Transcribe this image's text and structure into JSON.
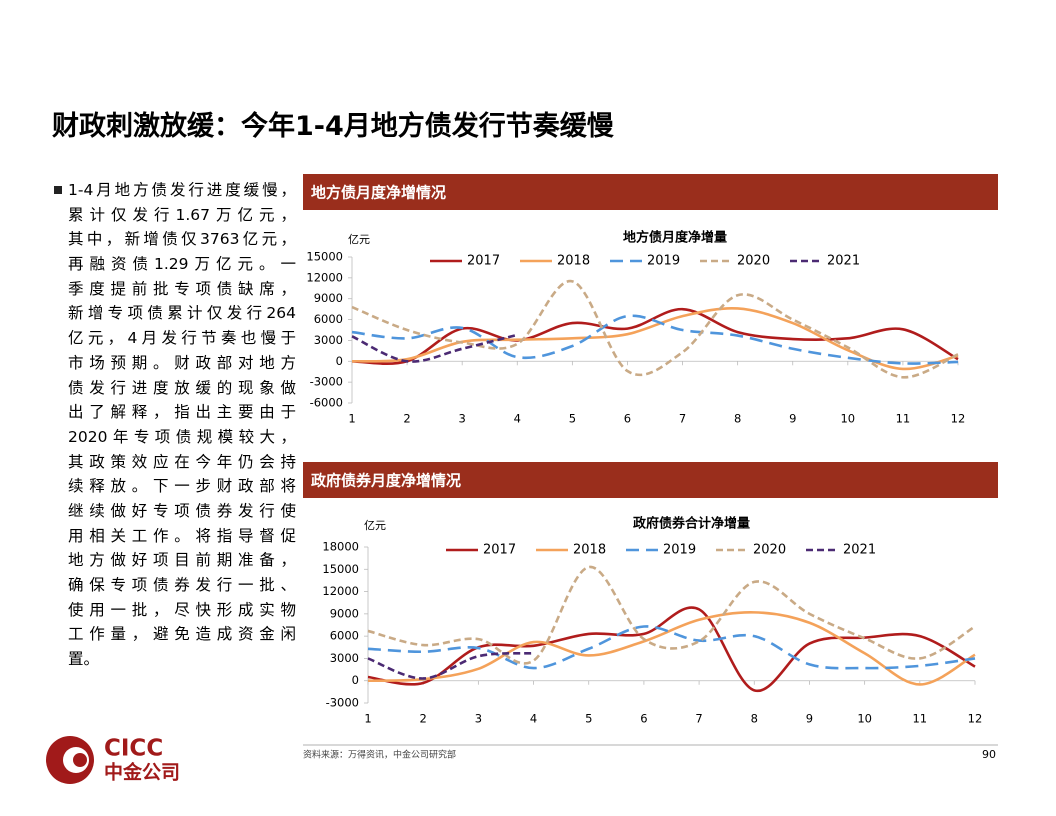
{
  "title": "财政刺激放缓：今年1-4月地方债发行节奏缓慢",
  "bullet_lines": [
    "1-4月地方债发行进度缓慢，",
    "累计仅发行1.67万亿元，",
    "其中，新增债仅3763亿元，",
    "再融资债1.29万亿元。一",
    "季度提前批专项债缺席，",
    "新增专项债累计仅发行264",
    "亿元，4月发行节奏也慢于",
    "市场预期。财政部对地方",
    "债发行进度放缓的现象做",
    "出了解释，指出主要由于",
    "2020年专项债规模较大，",
    "其政策效应在今年仍会持",
    "续释放。下一步财政部将",
    "继续做好专项债券发行使",
    "用相关工作。将指导督促",
    "地方做好项目前期准备，",
    "确保专项债券发行一批、",
    "使用一批，尽快形成实物",
    "工作量，避免造成资金闲",
    "置。"
  ],
  "source": "资料来源：万得资讯，中金公司研究部",
  "page_number": "90",
  "logo": {
    "name": "CICC",
    "name_cn": "中金公司"
  },
  "chart_data": [
    {
      "type": "line",
      "header": "地方债月度净增情况",
      "title": "地方债月度净增量",
      "y_label": "亿元",
      "x": [
        1,
        2,
        3,
        4,
        5,
        6,
        7,
        8,
        9,
        10,
        11,
        12
      ],
      "xlim": [
        1,
        12
      ],
      "xticks": [
        1,
        2,
        3,
        4,
        5,
        6,
        7,
        8,
        9,
        10,
        11,
        12
      ],
      "ylim": [
        -6000,
        15000
      ],
      "yticks": [
        -6000,
        -3000,
        0,
        3000,
        6000,
        9000,
        12000,
        15000
      ],
      "series": [
        {
          "name": "2017",
          "color": "#b01c1c",
          "dash": "solid",
          "values": [
            0,
            0,
            4700,
            3000,
            5500,
            4700,
            7500,
            4200,
            3200,
            3300,
            4600,
            300
          ]
        },
        {
          "name": "2018",
          "color": "#f4a25a",
          "dash": "solid",
          "values": [
            0,
            300,
            2800,
            3100,
            3300,
            3900,
            6500,
            7600,
            5500,
            1600,
            -1100,
            800
          ]
        },
        {
          "name": "2019",
          "color": "#4f95dc",
          "dash": "long-dash",
          "values": [
            4200,
            3300,
            4800,
            600,
            2200,
            6500,
            4500,
            3700,
            1800,
            500,
            -300,
            -100
          ]
        },
        {
          "name": "2020",
          "color": "#c9aa86",
          "dash": "dash",
          "values": [
            7800,
            4500,
            2700,
            2500,
            11500,
            -1400,
            1300,
            9500,
            6000,
            2000,
            -2300,
            1000
          ]
        },
        {
          "name": "2021",
          "color": "#4b2a73",
          "dash": "dash",
          "values": [
            3600,
            0,
            1800,
            3800,
            null,
            null,
            null,
            null,
            null,
            null,
            null,
            null
          ]
        }
      ]
    },
    {
      "type": "line",
      "header": "政府债券月度净增情况",
      "title": "政府债券合计净增量",
      "y_label": "亿元",
      "x": [
        1,
        2,
        3,
        4,
        5,
        6,
        7,
        8,
        9,
        10,
        11,
        12
      ],
      "xlim": [
        1,
        12
      ],
      "xticks": [
        1,
        2,
        3,
        4,
        5,
        6,
        7,
        8,
        9,
        10,
        11,
        12
      ],
      "ylim": [
        -3000,
        18000
      ],
      "yticks": [
        -3000,
        0,
        3000,
        6000,
        9000,
        12000,
        15000,
        18000
      ],
      "series": [
        {
          "name": "2017",
          "color": "#b01c1c",
          "dash": "solid",
          "values": [
            500,
            -300,
            4500,
            4700,
            6300,
            6300,
            9600,
            -1300,
            5000,
            5800,
            6000,
            1900
          ]
        },
        {
          "name": "2018",
          "color": "#f4a25a",
          "dash": "solid",
          "values": [
            0,
            200,
            1600,
            5200,
            3400,
            5300,
            8200,
            9200,
            7800,
            3700,
            -500,
            3500
          ]
        },
        {
          "name": "2019",
          "color": "#4f95dc",
          "dash": "long-dash",
          "values": [
            4300,
            3900,
            4400,
            1700,
            4300,
            7300,
            5400,
            6000,
            2200,
            1700,
            2000,
            3000
          ]
        },
        {
          "name": "2020",
          "color": "#c9aa86",
          "dash": "dash",
          "values": [
            6700,
            4800,
            5600,
            2700,
            15300,
            5600,
            5300,
            13300,
            9000,
            5700,
            3000,
            7300
          ]
        },
        {
          "name": "2021",
          "color": "#4b2a73",
          "dash": "dash",
          "values": [
            3000,
            300,
            3300,
            3700,
            null,
            null,
            null,
            null,
            null,
            null,
            null,
            null
          ]
        }
      ]
    }
  ]
}
